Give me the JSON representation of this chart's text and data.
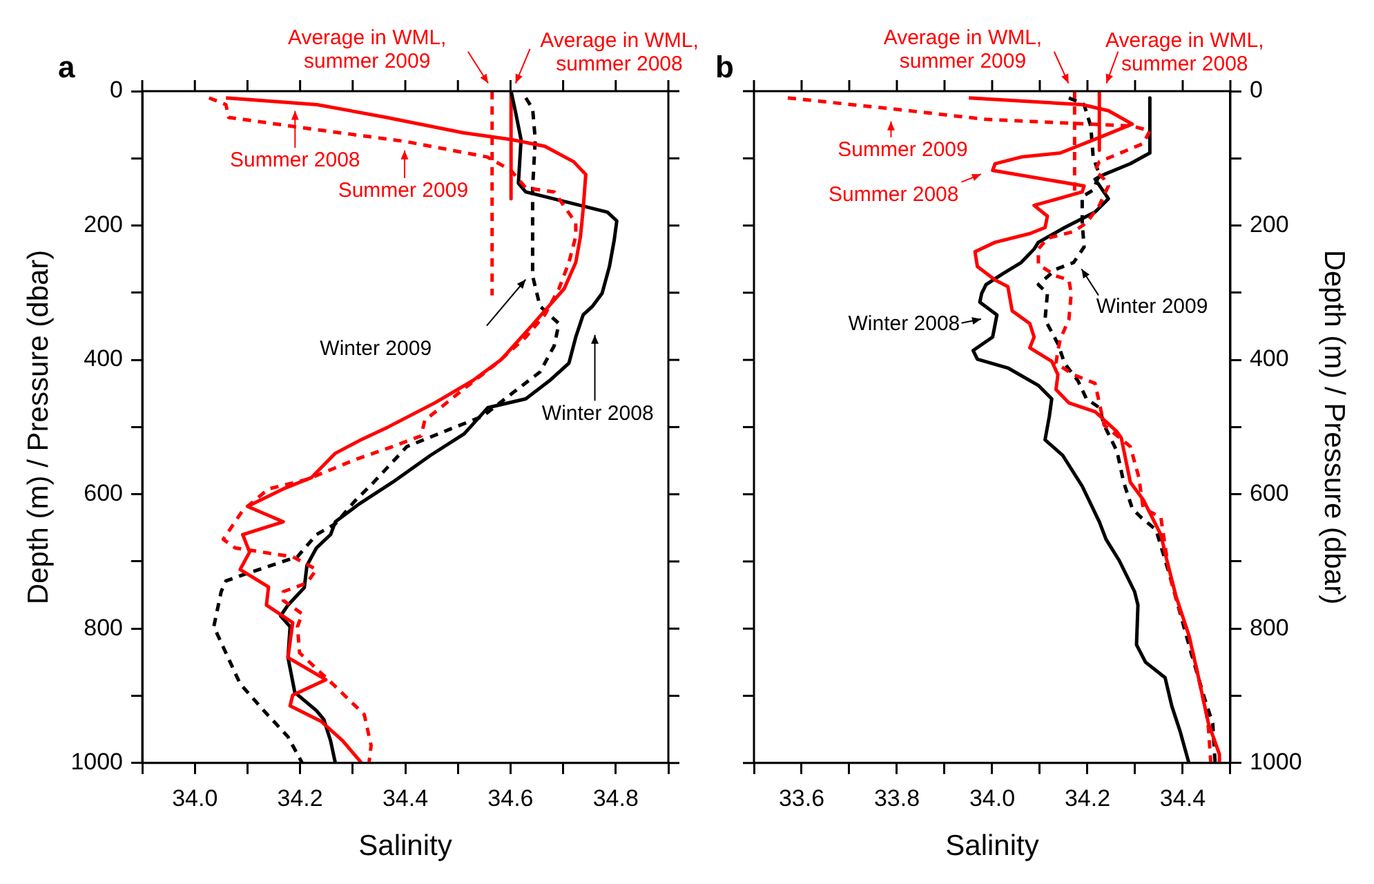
{
  "chart_data": [
    {
      "type": "line",
      "title": "a",
      "xlabel": "Salinity",
      "ylabel": "Depth (m) / Pressure (dbar)",
      "xlim": [
        33.9,
        34.9
      ],
      "xticks": [
        {
          "value": 33.9,
          "label": null
        },
        {
          "value": 34.0,
          "label": "34.0"
        },
        {
          "value": 34.1,
          "label": null
        },
        {
          "value": 34.2,
          "label": "34.2"
        },
        {
          "value": 34.3,
          "label": null
        },
        {
          "value": 34.4,
          "label": "34.4"
        },
        {
          "value": 34.5,
          "label": null
        },
        {
          "value": 34.6,
          "label": "34.6"
        },
        {
          "value": 34.7,
          "label": null
        },
        {
          "value": 34.8,
          "label": "34.8"
        },
        {
          "value": 34.9,
          "label": null
        }
      ],
      "ylim": [
        1000,
        0
      ],
      "yticks": [
        0,
        {
          "value": 100,
          "label": null
        },
        200,
        {
          "value": 300,
          "label": null
        },
        400,
        {
          "value": 500,
          "label": null
        },
        600,
        {
          "value": 700,
          "label": null
        },
        800,
        {
          "value": 900,
          "label": null
        },
        1000
      ],
      "grid": false,
      "legend": false,
      "marker": "none",
      "series": [
        {
          "color": "#ff0000",
          "line_style": "solid",
          "x": [
            34.059,
            34.232,
            34.364,
            34.51,
            34.601,
            34.665,
            34.72,
            34.743,
            34.738,
            34.733,
            34.724,
            34.702,
            34.665,
            34.629,
            34.583,
            34.528,
            34.456,
            34.367,
            34.313,
            34.267,
            34.222,
            34.168,
            34.1,
            34.168,
            34.091,
            34.104,
            34.086,
            34.14,
            34.136,
            34.186,
            34.177,
            34.249,
            34.186,
            34.181,
            34.24,
            34.281,
            34.317
          ],
          "values": [
            10,
            20,
            39,
            62,
            72,
            82,
            105,
            124,
            176,
            216,
            255,
            294,
            327,
            359,
            399,
            431,
            464,
            500,
            520,
            539,
            575,
            592,
            618,
            641,
            660,
            686,
            712,
            738,
            765,
            791,
            843,
            876,
            899,
            915,
            938,
            967,
            1000
          ]
        },
        {
          "color": "#ff0000",
          "line_style": "dashed",
          "x": [
            34.027,
            34.059,
            34.064,
            34.219,
            34.401,
            34.556,
            34.601,
            34.629,
            34.683,
            34.724,
            34.724,
            34.711,
            34.692,
            34.665,
            34.629,
            34.574,
            34.51,
            34.437,
            34.43,
            34.376,
            34.303,
            34.213,
            34.14,
            34.091,
            34.054,
            34.077,
            34.186,
            34.231,
            34.213,
            34.168,
            34.168,
            34.204,
            34.195,
            34.199,
            34.267,
            34.322,
            34.335,
            34.331
          ],
          "values": [
            10,
            20,
            39,
            56,
            75,
            98,
            118,
            144,
            150,
            196,
            216,
            255,
            294,
            333,
            366,
            405,
            444,
            490,
            513,
            529,
            549,
            578,
            592,
            624,
            667,
            680,
            693,
            712,
            732,
            745,
            758,
            778,
            797,
            836,
            886,
            928,
            974,
            1000
          ]
        },
        {
          "color": "#000000",
          "line_style": "solid",
          "x": [
            34.601,
            34.61,
            34.62,
            34.615,
            34.629,
            34.784,
            34.802,
            34.797,
            34.788,
            34.774,
            34.756,
            34.738,
            34.724,
            34.711,
            34.674,
            34.629,
            34.557,
            34.512,
            34.448,
            34.376,
            34.313,
            34.267,
            34.258,
            34.231,
            34.213,
            34.208,
            34.177,
            34.163,
            34.181,
            34.177,
            34.19,
            34.231,
            34.245,
            34.258,
            34.267
          ],
          "values": [
            0,
            33,
            72,
            137,
            150,
            180,
            193,
            222,
            261,
            301,
            320,
            333,
            366,
            405,
            431,
            458,
            471,
            510,
            542,
            582,
            614,
            641,
            660,
            680,
            706,
            739,
            765,
            781,
            797,
            843,
            895,
            922,
            935,
            967,
            1000
          ]
        },
        {
          "color": "#000000",
          "line_style": "dashed",
          "x": [
            34.629,
            34.642,
            34.647,
            34.642,
            34.642,
            34.656,
            34.692,
            34.683,
            34.656,
            34.601,
            34.547,
            34.485,
            34.403,
            34.34,
            34.303,
            34.267,
            34.231,
            34.195,
            34.095,
            34.059,
            34.05,
            34.036,
            34.086,
            34.131,
            34.177,
            34.204
          ],
          "values": [
            10,
            26,
            72,
            144,
            275,
            320,
            346,
            379,
            418,
            451,
            484,
            503,
            529,
            582,
            611,
            644,
            660,
            693,
            719,
            729,
            745,
            797,
            882,
            922,
            961,
            1000
          ]
        },
        {
          "color": "#ff0000",
          "line_style": "dashed",
          "x": [
            34.565,
            34.565
          ],
          "values": [
            0,
            304
          ]
        },
        {
          "color": "#ff0000",
          "line_style": "solid",
          "x": [
            34.601,
            34.601
          ],
          "values": [
            0,
            160
          ]
        }
      ],
      "annotations": [
        "Average in WML,\nsummer 2009",
        "Average in WML,\nsummer 2008",
        "Summer 2008",
        "Summer 2009",
        "Winter 2009",
        "Winter 2008"
      ]
    },
    {
      "type": "line",
      "title": "b",
      "xlabel": "Salinity",
      "y2label": "Depth (m) / Pressure (dbar)",
      "xlim": [
        33.5,
        34.5
      ],
      "xticks": [
        {
          "value": 33.5,
          "label": null
        },
        {
          "value": 33.6,
          "label": "33.6"
        },
        {
          "value": 33.7,
          "label": null
        },
        {
          "value": 33.8,
          "label": "33.8"
        },
        {
          "value": 33.9,
          "label": null
        },
        {
          "value": 34.0,
          "label": "34.0"
        },
        {
          "value": 34.1,
          "label": null
        },
        {
          "value": 34.2,
          "label": "34.2"
        },
        {
          "value": 34.3,
          "label": null
        },
        {
          "value": 34.4,
          "label": "34.4"
        },
        {
          "value": 34.5,
          "label": null
        }
      ],
      "y2lim": [
        1000,
        0
      ],
      "y2ticks": [
        0,
        {
          "value": 100,
          "label": null
        },
        200,
        {
          "value": 300,
          "label": null
        },
        400,
        {
          "value": 500,
          "label": null
        },
        600,
        {
          "value": 700,
          "label": null
        },
        800,
        {
          "value": 900,
          "label": null
        },
        1000
      ],
      "grid": false,
      "legend": false,
      "marker": "none",
      "series": [
        {
          "color": "#ff0000",
          "line_style": "solid",
          "axis": "y2",
          "x": [
            33.951,
            34.189,
            34.244,
            34.294,
            34.225,
            34.143,
            34.061,
            34.006,
            34.001,
            34.193,
            34.189,
            34.088,
            34.116,
            34.111,
            34.079,
            34.006,
            33.964,
            33.969,
            34.006,
            34.033,
            34.042,
            34.079,
            34.088,
            34.079,
            34.125,
            34.138,
            34.134,
            34.161,
            34.216,
            34.262,
            34.271,
            34.29,
            34.317,
            34.354,
            34.367,
            34.386,
            34.413,
            34.432,
            34.454,
            34.477,
            34.477
          ],
          "values": [
            10,
            20,
            29,
            49,
            69,
            92,
            98,
            108,
            118,
            141,
            150,
            170,
            186,
            203,
            212,
            225,
            239,
            261,
            281,
            291,
            327,
            346,
            366,
            382,
            402,
            422,
            444,
            464,
            477,
            507,
            516,
            582,
            608,
            660,
            699,
            752,
            810,
            869,
            941,
            987,
            1000
          ]
        },
        {
          "color": "#ff0000",
          "line_style": "dashed",
          "axis": "y2",
          "x": [
            33.571,
            33.786,
            33.987,
            34.294,
            34.331,
            34.317,
            34.225,
            34.216,
            34.235,
            34.244,
            34.225,
            34.198,
            34.171,
            34.116,
            34.097,
            34.097,
            34.134,
            34.161,
            34.166,
            34.161,
            34.143,
            34.138,
            34.134,
            34.171,
            34.216,
            34.225,
            34.235,
            34.29,
            34.308,
            34.317,
            34.354,
            34.358,
            34.372,
            34.39,
            34.413,
            34.432,
            34.45,
            34.454,
            34.459
          ],
          "values": [
            10,
            26,
            42,
            52,
            59,
            78,
            105,
            118,
            131,
            141,
            170,
            196,
            209,
            219,
            235,
            258,
            275,
            281,
            301,
            340,
            369,
            386,
            405,
            422,
            435,
            464,
            497,
            529,
            575,
            621,
            634,
            653,
            719,
            765,
            810,
            869,
            928,
            948,
            1000
          ]
        },
        {
          "color": "#000000",
          "line_style": "solid",
          "axis": "y2",
          "x": [
            34.331,
            34.331,
            34.29,
            34.235,
            34.216,
            34.244,
            34.216,
            34.152,
            34.097,
            34.088,
            34.061,
            34.024,
            33.987,
            33.978,
            33.974,
            34.01,
            34.001,
            33.96,
            33.969,
            34.033,
            34.097,
            34.125,
            34.12,
            34.111,
            34.148,
            34.189,
            34.225,
            34.239,
            34.267,
            34.299,
            34.306,
            34.303,
            34.322,
            34.363,
            34.377,
            34.395,
            34.413
          ],
          "values": [
            10,
            92,
            108,
            124,
            131,
            160,
            180,
            203,
            225,
            235,
            255,
            271,
            288,
            301,
            314,
            333,
            366,
            386,
            399,
            412,
            438,
            458,
            484,
            519,
            542,
            588,
            641,
            667,
            699,
            745,
            765,
            824,
            850,
            873,
            915,
            954,
            1000
          ]
        },
        {
          "color": "#000000",
          "line_style": "dashed",
          "axis": "y2",
          "x": [
            34.161,
            34.193,
            34.207,
            34.212,
            34.225,
            34.212,
            34.189,
            34.189,
            34.193,
            34.171,
            34.134,
            34.097,
            34.116,
            34.111,
            34.138,
            34.152,
            34.18,
            34.198,
            34.225,
            34.235,
            34.262,
            34.276,
            34.294,
            34.312,
            34.344,
            34.372,
            34.395,
            34.418,
            34.445,
            34.463,
            34.468
          ],
          "values": [
            10,
            20,
            52,
            98,
            124,
            147,
            157,
            196,
            232,
            255,
            265,
            288,
            301,
            340,
            376,
            405,
            431,
            458,
            471,
            497,
            536,
            582,
            621,
            634,
            653,
            719,
            778,
            837,
            902,
            941,
            1000
          ]
        },
        {
          "color": "#ff0000",
          "line_style": "dashed",
          "axis": "y2",
          "x": [
            34.173,
            34.173
          ],
          "values": [
            0,
            150
          ]
        },
        {
          "color": "#ff0000",
          "line_style": "solid",
          "axis": "y2",
          "x": [
            34.225,
            34.225
          ],
          "values": [
            0,
            88
          ]
        }
      ],
      "annotations": [
        "Average in WML,\nsummer 2009",
        "Average in WML,\nsummer 2008",
        "Summer 2009",
        "Summer 2008",
        "Winter 2009",
        "Winter 2008"
      ]
    }
  ]
}
